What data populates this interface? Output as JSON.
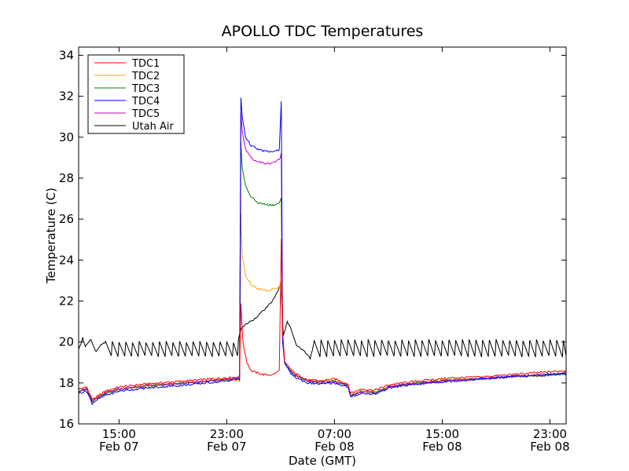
{
  "chart_data": {
    "type": "line",
    "title": "APOLLO TDC Temperatures",
    "xlabel": "Date (GMT)",
    "ylabel": "Temperature (C)",
    "x_unit": "hours since Feb 07 12:00 GMT",
    "xlim": [
      0,
      36.2
    ],
    "ylim": [
      16,
      34.4
    ],
    "yticks": [
      16,
      18,
      20,
      22,
      24,
      26,
      28,
      30,
      32,
      34
    ],
    "xticks": [
      {
        "x": 3,
        "line1": "15:00",
        "line2": "Feb 07"
      },
      {
        "x": 11,
        "line1": "23:00",
        "line2": "Feb 07"
      },
      {
        "x": 19,
        "line1": "07:00",
        "line2": "Feb 08"
      },
      {
        "x": 27,
        "line1": "15:00",
        "line2": "Feb 08"
      },
      {
        "x": 35,
        "line1": "23:00",
        "line2": "Feb 08"
      }
    ],
    "legend_position": "top-left",
    "grid": false,
    "series": [
      {
        "name": "TDC1",
        "color": "#ff0000",
        "x": [
          0,
          0.6,
          1.0,
          1.3,
          2.0,
          3.0,
          5.0,
          8.0,
          11.0,
          11.95,
          12.05,
          12.2,
          12.5,
          12.8,
          13.2,
          13.8,
          14.4,
          14.9,
          15.05,
          15.15,
          15.3,
          15.6,
          16.0,
          17.0,
          18.0,
          19.0,
          20.0,
          20.2,
          21.0,
          22.0,
          23.0,
          24.0,
          26.0,
          28.0,
          30.0,
          32.0,
          34.0,
          36.2
        ],
        "y": [
          17.7,
          17.8,
          17.2,
          17.3,
          17.6,
          17.8,
          17.95,
          18.1,
          18.25,
          18.3,
          21.9,
          20.0,
          19.0,
          18.6,
          18.5,
          18.4,
          18.4,
          18.6,
          25.0,
          20.5,
          19.0,
          18.8,
          18.5,
          18.15,
          18.1,
          18.2,
          17.95,
          17.5,
          17.7,
          17.65,
          17.9,
          18.0,
          18.15,
          18.25,
          18.3,
          18.4,
          18.5,
          18.6
        ]
      },
      {
        "name": "TDC2",
        "color": "#ffa500",
        "x": [
          0,
          0.6,
          1.0,
          1.3,
          2.0,
          3.0,
          5.0,
          8.0,
          11.0,
          11.95,
          12.05,
          12.15,
          12.4,
          12.8,
          13.3,
          14.0,
          14.6,
          14.9,
          15.05,
          15.15,
          15.3,
          15.6,
          16.0,
          17.0,
          18.0,
          19.0,
          20.0,
          20.2,
          21.0,
          22.0,
          23.0,
          24.0,
          26.0,
          28.0,
          30.0,
          32.0,
          34.0,
          36.2
        ],
        "y": [
          17.6,
          17.7,
          17.15,
          17.25,
          17.5,
          17.7,
          17.85,
          18.0,
          18.15,
          18.1,
          26.3,
          24.2,
          23.2,
          22.8,
          22.6,
          22.5,
          22.6,
          22.7,
          23.0,
          20.2,
          19.0,
          18.7,
          18.4,
          18.1,
          18.05,
          18.1,
          17.9,
          17.4,
          17.6,
          17.55,
          17.8,
          17.9,
          18.05,
          18.15,
          18.2,
          18.3,
          18.35,
          18.45
        ]
      },
      {
        "name": "TDC3",
        "color": "#008000",
        "x": [
          0,
          0.6,
          1.0,
          1.3,
          2.0,
          3.0,
          5.0,
          8.0,
          11.0,
          11.95,
          12.05,
          12.15,
          12.4,
          12.8,
          13.3,
          14.0,
          14.6,
          14.9,
          15.05,
          15.15,
          15.3,
          15.6,
          16.0,
          17.0,
          18.0,
          19.0,
          20.0,
          20.2,
          21.0,
          22.0,
          23.0,
          24.0,
          26.0,
          28.0,
          30.0,
          32.0,
          34.0,
          36.2
        ],
        "y": [
          17.6,
          17.7,
          17.1,
          17.25,
          17.5,
          17.7,
          17.85,
          18.0,
          18.15,
          18.15,
          29.8,
          28.5,
          27.6,
          27.1,
          26.8,
          26.7,
          26.7,
          26.8,
          27.0,
          20.0,
          19.0,
          18.7,
          18.4,
          18.1,
          18.05,
          18.1,
          17.9,
          17.4,
          17.6,
          17.55,
          17.8,
          17.9,
          18.05,
          18.15,
          18.2,
          18.3,
          18.35,
          18.45
        ]
      },
      {
        "name": "TDC4",
        "color": "#0000ff",
        "x": [
          0,
          0.6,
          1.0,
          1.3,
          2.0,
          3.0,
          5.0,
          8.0,
          11.0,
          11.95,
          12.05,
          12.15,
          12.4,
          12.8,
          13.3,
          14.0,
          14.6,
          14.9,
          15.05,
          15.15,
          15.3,
          15.6,
          16.0,
          17.0,
          18.0,
          19.0,
          20.0,
          20.2,
          21.0,
          22.0,
          23.0,
          24.0,
          26.0,
          28.0,
          30.0,
          32.0,
          34.0,
          36.2
        ],
        "y": [
          17.5,
          17.6,
          17.0,
          17.15,
          17.4,
          17.6,
          17.75,
          17.9,
          18.1,
          18.2,
          31.9,
          31.0,
          30.0,
          29.6,
          29.4,
          29.3,
          29.3,
          29.4,
          31.8,
          20.0,
          19.0,
          18.6,
          18.3,
          18.0,
          17.95,
          18.0,
          17.8,
          17.3,
          17.5,
          17.45,
          17.75,
          17.85,
          18.0,
          18.1,
          18.2,
          18.3,
          18.35,
          18.45
        ]
      },
      {
        "name": "TDC5",
        "color": "#bf00bf",
        "x": [
          0,
          0.6,
          1.0,
          1.3,
          2.0,
          3.0,
          5.0,
          8.0,
          11.0,
          11.95,
          12.05,
          12.15,
          12.4,
          12.8,
          13.3,
          14.0,
          14.6,
          14.9,
          15.05,
          15.15,
          15.3,
          15.6,
          16.0,
          17.0,
          18.0,
          19.0,
          20.0,
          20.2,
          21.0,
          22.0,
          23.0,
          24.0,
          26.0,
          28.0,
          30.0,
          32.0,
          34.0,
          36.2
        ],
        "y": [
          17.6,
          17.7,
          17.1,
          17.25,
          17.5,
          17.7,
          17.85,
          18.0,
          18.2,
          18.2,
          31.2,
          30.3,
          29.4,
          29.0,
          28.8,
          28.7,
          28.8,
          28.9,
          29.2,
          20.2,
          19.0,
          18.7,
          18.4,
          18.1,
          18.0,
          18.05,
          17.85,
          17.35,
          17.55,
          17.5,
          17.8,
          17.9,
          18.05,
          18.15,
          18.2,
          18.3,
          18.4,
          18.5
        ]
      },
      {
        "name": "Utah Air",
        "color": "#000000",
        "x": [
          0,
          0.3,
          0.5,
          0.9,
          1.3,
          1.7,
          2.0,
          11.8,
          12.1,
          12.5,
          13.0,
          13.5,
          14.0,
          14.5,
          15.0,
          15.2,
          15.5,
          15.8,
          16.2,
          16.7,
          17.2,
          17.5,
          36.2
        ],
        "y": [
          19.6,
          20.2,
          19.8,
          20.1,
          19.5,
          19.9,
          20.0,
          20.0,
          20.7,
          20.9,
          21.1,
          21.4,
          21.7,
          22.1,
          22.8,
          20.3,
          21.0,
          20.6,
          19.8,
          19.6,
          19.2,
          20.0,
          20.0
        ]
      }
    ],
    "air_sawtooth": [
      {
        "from": 2.0,
        "to": 11.8,
        "period": 0.5,
        "high": 20.0,
        "low": 19.3
      },
      {
        "from": 17.5,
        "to": 36.2,
        "period": 0.5,
        "high": 20.1,
        "low": 19.3
      }
    ]
  }
}
